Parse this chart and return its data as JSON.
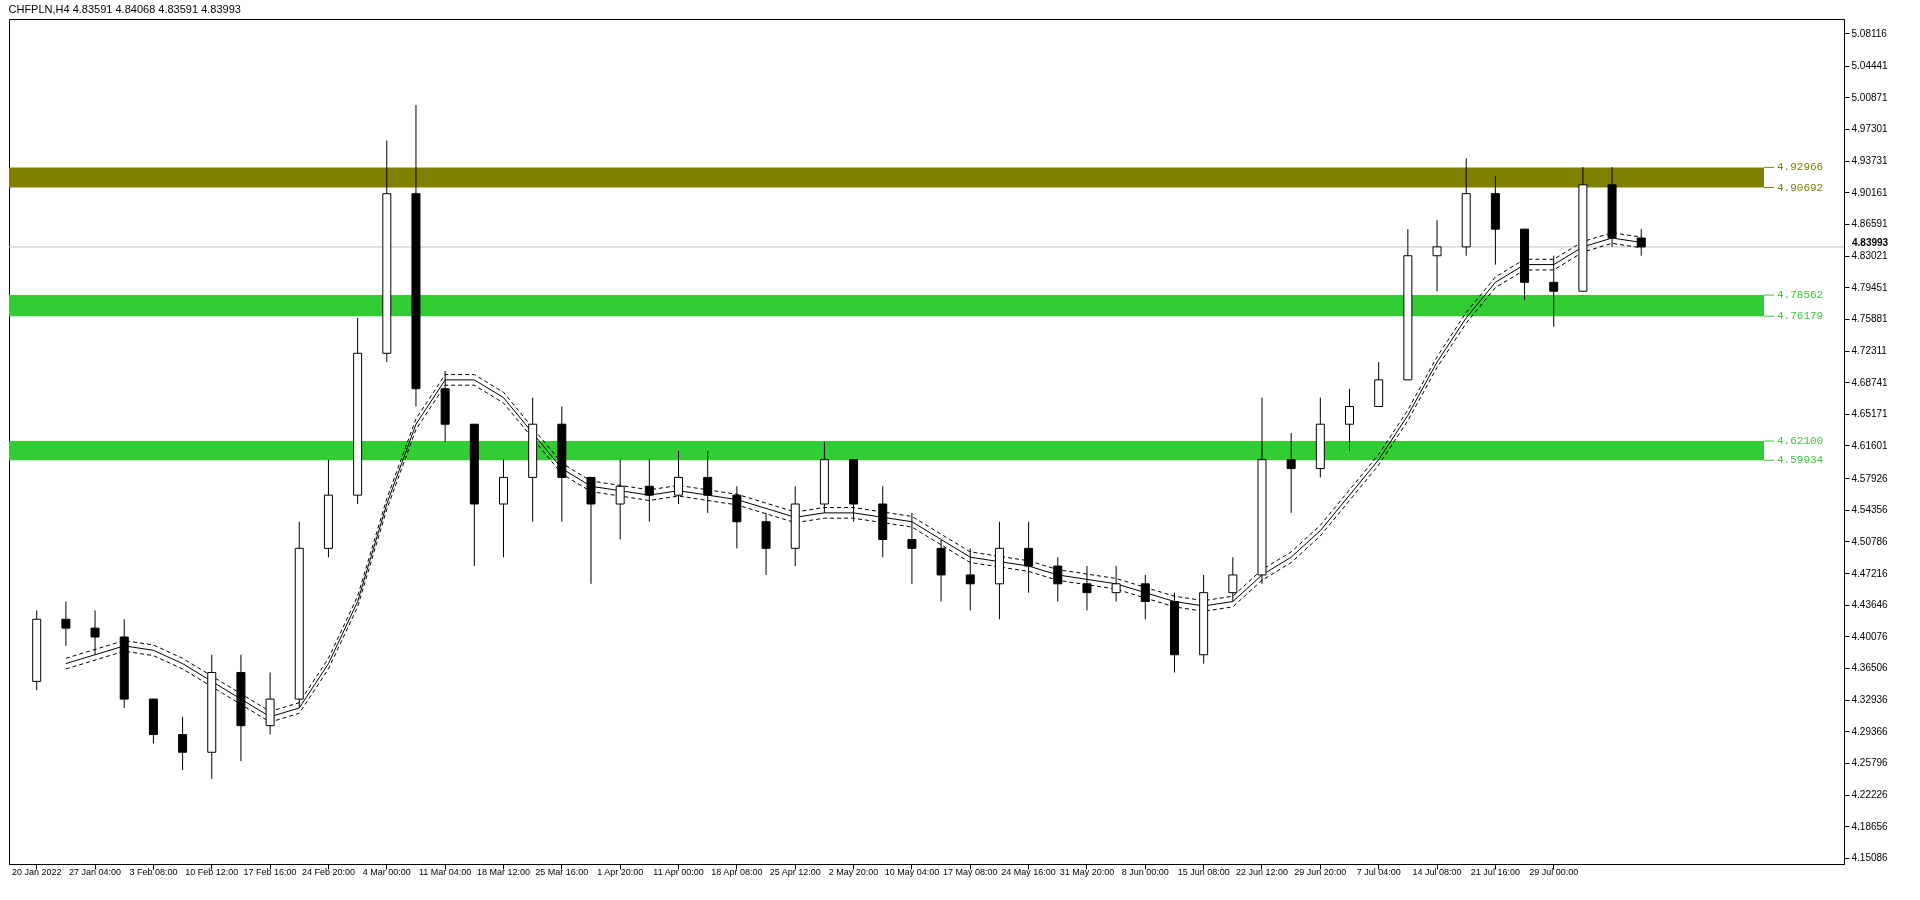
{
  "chart_data": {
    "type": "candlestick",
    "title": "CHFPLN,H4  4.83591 4.84068 4.83591 4.83993",
    "color": "#000000",
    "categories": [
      "20 Jan 2022",
      null,
      "27 Jan 04:00",
      null,
      "3 Feb 08:00",
      null,
      "10 Feb 12:00",
      null,
      "17 Feb 16:00",
      null,
      "24 Feb 20:00",
      null,
      "4 Mar 00:00",
      null,
      "11 Mar 04:00",
      null,
      "18 Mar 12:00",
      null,
      "25 Mar 16:00",
      null,
      "1 Apr 20:00",
      null,
      "11 Apr 00:00",
      null,
      "18 Apr 08:00",
      null,
      "25 Apr 12:00",
      null,
      "2 May 20:00",
      null,
      "10 May 04:00",
      null,
      "17 May 08:00",
      null,
      "24 May 16:00",
      null,
      "31 May 20:00",
      null,
      "8 Jun 00:00",
      null,
      "15 Jun 08:00",
      null,
      "22 Jun 12:00",
      null,
      "29 Jun 20:00",
      null,
      "7 Jul 04:00",
      null,
      "14 Jul 08:00",
      null,
      "21 Jul 16:00",
      null,
      "29 Jul 00:00",
      null,
      null,
      null,
      null,
      null,
      null,
      null,
      null,
      null
    ],
    "ohlc": [
      [
        4.35,
        4.43,
        4.34,
        4.42
      ],
      [
        4.42,
        4.44,
        4.39,
        4.41
      ],
      [
        4.41,
        4.43,
        4.38,
        4.4
      ],
      [
        4.4,
        4.42,
        4.32,
        4.33
      ],
      [
        4.33,
        4.33,
        4.28,
        4.29
      ],
      [
        4.29,
        4.31,
        4.25,
        4.27
      ],
      [
        4.27,
        4.38,
        4.24,
        4.36
      ],
      [
        4.36,
        4.38,
        4.26,
        4.3
      ],
      [
        4.3,
        4.36,
        4.29,
        4.33
      ],
      [
        4.33,
        4.53,
        4.32,
        4.5
      ],
      [
        4.5,
        4.6,
        4.49,
        4.56
      ],
      [
        4.56,
        4.76,
        4.55,
        4.72
      ],
      [
        4.72,
        4.96,
        4.71,
        4.9
      ],
      [
        4.9,
        5.0,
        4.66,
        4.68
      ],
      [
        4.68,
        4.7,
        4.62,
        4.64
      ],
      [
        4.64,
        4.64,
        4.48,
        4.55
      ],
      [
        4.55,
        4.6,
        4.49,
        4.58
      ],
      [
        4.58,
        4.67,
        4.53,
        4.64
      ],
      [
        4.64,
        4.66,
        4.53,
        4.58
      ],
      [
        4.58,
        4.58,
        4.46,
        4.55
      ],
      [
        4.55,
        4.6,
        4.51,
        4.57
      ],
      [
        4.57,
        4.6,
        4.53,
        4.56
      ],
      [
        4.56,
        4.61,
        4.55,
        4.58
      ],
      [
        4.58,
        4.61,
        4.54,
        4.56
      ],
      [
        4.56,
        4.57,
        4.5,
        4.53
      ],
      [
        4.53,
        4.54,
        4.47,
        4.5
      ],
      [
        4.5,
        4.57,
        4.48,
        4.55
      ],
      [
        4.55,
        4.62,
        4.54,
        4.6
      ],
      [
        4.6,
        4.6,
        4.53,
        4.55
      ],
      [
        4.55,
        4.57,
        4.49,
        4.51
      ],
      [
        4.51,
        4.54,
        4.46,
        4.5
      ],
      [
        4.5,
        4.51,
        4.44,
        4.47
      ],
      [
        4.47,
        4.5,
        4.43,
        4.46
      ],
      [
        4.46,
        4.53,
        4.42,
        4.5
      ],
      [
        4.5,
        4.53,
        4.45,
        4.48
      ],
      [
        4.48,
        4.49,
        4.44,
        4.46
      ],
      [
        4.46,
        4.48,
        4.43,
        4.45
      ],
      [
        4.45,
        4.48,
        4.44,
        4.46
      ],
      [
        4.46,
        4.47,
        4.42,
        4.44
      ],
      [
        4.44,
        4.45,
        4.36,
        4.38
      ],
      [
        4.38,
        4.47,
        4.37,
        4.45
      ],
      [
        4.45,
        4.49,
        4.44,
        4.47
      ],
      [
        4.47,
        4.67,
        4.46,
        4.6
      ],
      [
        4.6,
        4.63,
        4.54,
        4.59
      ],
      [
        4.59,
        4.67,
        4.58,
        4.64
      ],
      [
        4.64,
        4.68,
        4.61,
        4.66
      ],
      [
        4.66,
        4.71,
        4.66,
        4.69
      ],
      [
        4.69,
        4.86,
        4.69,
        4.83
      ],
      [
        4.83,
        4.87,
        4.79,
        4.84
      ],
      [
        4.84,
        4.94,
        4.83,
        4.9
      ],
      [
        4.9,
        4.92,
        4.82,
        4.86
      ],
      [
        4.86,
        4.86,
        4.78,
        4.8
      ],
      [
        4.8,
        4.83,
        4.75,
        4.79
      ],
      [
        4.79,
        4.93,
        4.79,
        4.91
      ],
      [
        4.91,
        4.93,
        4.84,
        4.85
      ],
      [
        4.85,
        4.86,
        4.83,
        4.83993
      ],
      null,
      null,
      null,
      null,
      null,
      null
    ],
    "series": [
      {
        "type": "line",
        "color": "#000000",
        "line_style": "solid",
        "values": [
          null,
          4.37,
          4.38,
          4.39,
          4.385,
          4.37,
          4.35,
          4.33,
          4.31,
          4.32,
          4.37,
          4.44,
          4.55,
          4.64,
          4.69,
          4.69,
          4.67,
          4.63,
          4.59,
          4.57,
          4.565,
          4.56,
          4.565,
          4.56,
          4.555,
          4.545,
          4.535,
          4.54,
          4.54,
          4.535,
          4.53,
          4.51,
          4.49,
          4.485,
          4.48,
          4.47,
          4.465,
          4.46,
          4.45,
          4.44,
          4.435,
          4.44,
          4.47,
          4.49,
          4.52,
          4.56,
          4.6,
          4.65,
          4.71,
          4.76,
          4.8,
          4.82,
          4.82,
          4.84,
          4.85,
          4.845,
          null,
          null,
          null,
          null,
          null,
          null
        ]
      },
      {
        "type": "line",
        "color": "#000000",
        "line_style": "dashed",
        "values": [
          null,
          4.376,
          4.386,
          4.396,
          4.391,
          4.376,
          4.356,
          4.336,
          4.316,
          4.326,
          4.376,
          4.446,
          4.556,
          4.646,
          4.696,
          4.696,
          4.676,
          4.636,
          4.596,
          4.576,
          4.571,
          4.566,
          4.571,
          4.566,
          4.561,
          4.551,
          4.541,
          4.546,
          4.546,
          4.541,
          4.536,
          4.516,
          4.496,
          4.491,
          4.486,
          4.476,
          4.471,
          4.466,
          4.456,
          4.446,
          4.441,
          4.446,
          4.476,
          4.496,
          4.526,
          4.566,
          4.606,
          4.656,
          4.716,
          4.766,
          4.806,
          4.826,
          4.826,
          4.846,
          4.856,
          4.851,
          null,
          null,
          null,
          null,
          null,
          null
        ]
      },
      {
        "type": "line",
        "color": "#000000",
        "line_style": "dashed",
        "values": [
          null,
          4.364,
          4.374,
          4.384,
          4.379,
          4.364,
          4.344,
          4.324,
          4.304,
          4.314,
          4.364,
          4.434,
          4.544,
          4.634,
          4.684,
          4.684,
          4.664,
          4.624,
          4.584,
          4.564,
          4.559,
          4.554,
          4.559,
          4.554,
          4.549,
          4.539,
          4.529,
          4.534,
          4.534,
          4.529,
          4.524,
          4.504,
          4.484,
          4.479,
          4.474,
          4.464,
          4.459,
          4.454,
          4.444,
          4.434,
          4.429,
          4.434,
          4.464,
          4.484,
          4.514,
          4.554,
          4.594,
          4.644,
          4.704,
          4.754,
          4.794,
          4.814,
          4.814,
          4.834,
          4.844,
          4.839,
          null,
          null,
          null,
          null,
          null,
          null
        ]
      }
    ],
    "ylim": [
      4.144,
      5.097
    ],
    "yticks": [
      4.15086,
      4.18656,
      4.22226,
      4.25796,
      4.29366,
      4.32936,
      4.36506,
      4.40076,
      4.43646,
      4.47216,
      4.50786,
      4.54356,
      4.57926,
      4.61601,
      4.65171,
      4.68741,
      4.72311,
      4.75881,
      4.79451,
      4.83021,
      4.86591,
      4.90161,
      4.93731,
      4.97301,
      5.00871,
      5.04441,
      5.08116
    ],
    "bands": [
      {
        "axis": "y",
        "from": 4.90692,
        "to": 4.92966,
        "color": "#808000"
      },
      {
        "axis": "y",
        "from": 4.76179,
        "to": 4.78562,
        "color": "#32cd32"
      },
      {
        "axis": "y",
        "from": 4.59934,
        "to": 4.621,
        "color": "#32cd32"
      }
    ],
    "ref_lines": [
      {
        "axis": "y",
        "value": 4.83993,
        "label": "4.83993",
        "color": "#c0c0c0"
      },
      {
        "axis": "y",
        "value": 4.92966,
        "label": "4.92966",
        "color": "#808000"
      },
      {
        "axis": "y",
        "value": 4.90692,
        "label": "4.90692",
        "color": "#808000"
      },
      {
        "axis": "y",
        "value": 4.78562,
        "label": "4.78562",
        "color": "#32cd32"
      },
      {
        "axis": "y",
        "value": 4.76179,
        "label": "4.76179",
        "color": "#32cd32"
      },
      {
        "axis": "y",
        "value": 4.621,
        "label": "4.62100",
        "color": "#32cd32"
      },
      {
        "axis": "y",
        "value": 4.59934,
        "label": "4.59934",
        "color": "#32cd32"
      }
    ],
    "grid": false
  }
}
